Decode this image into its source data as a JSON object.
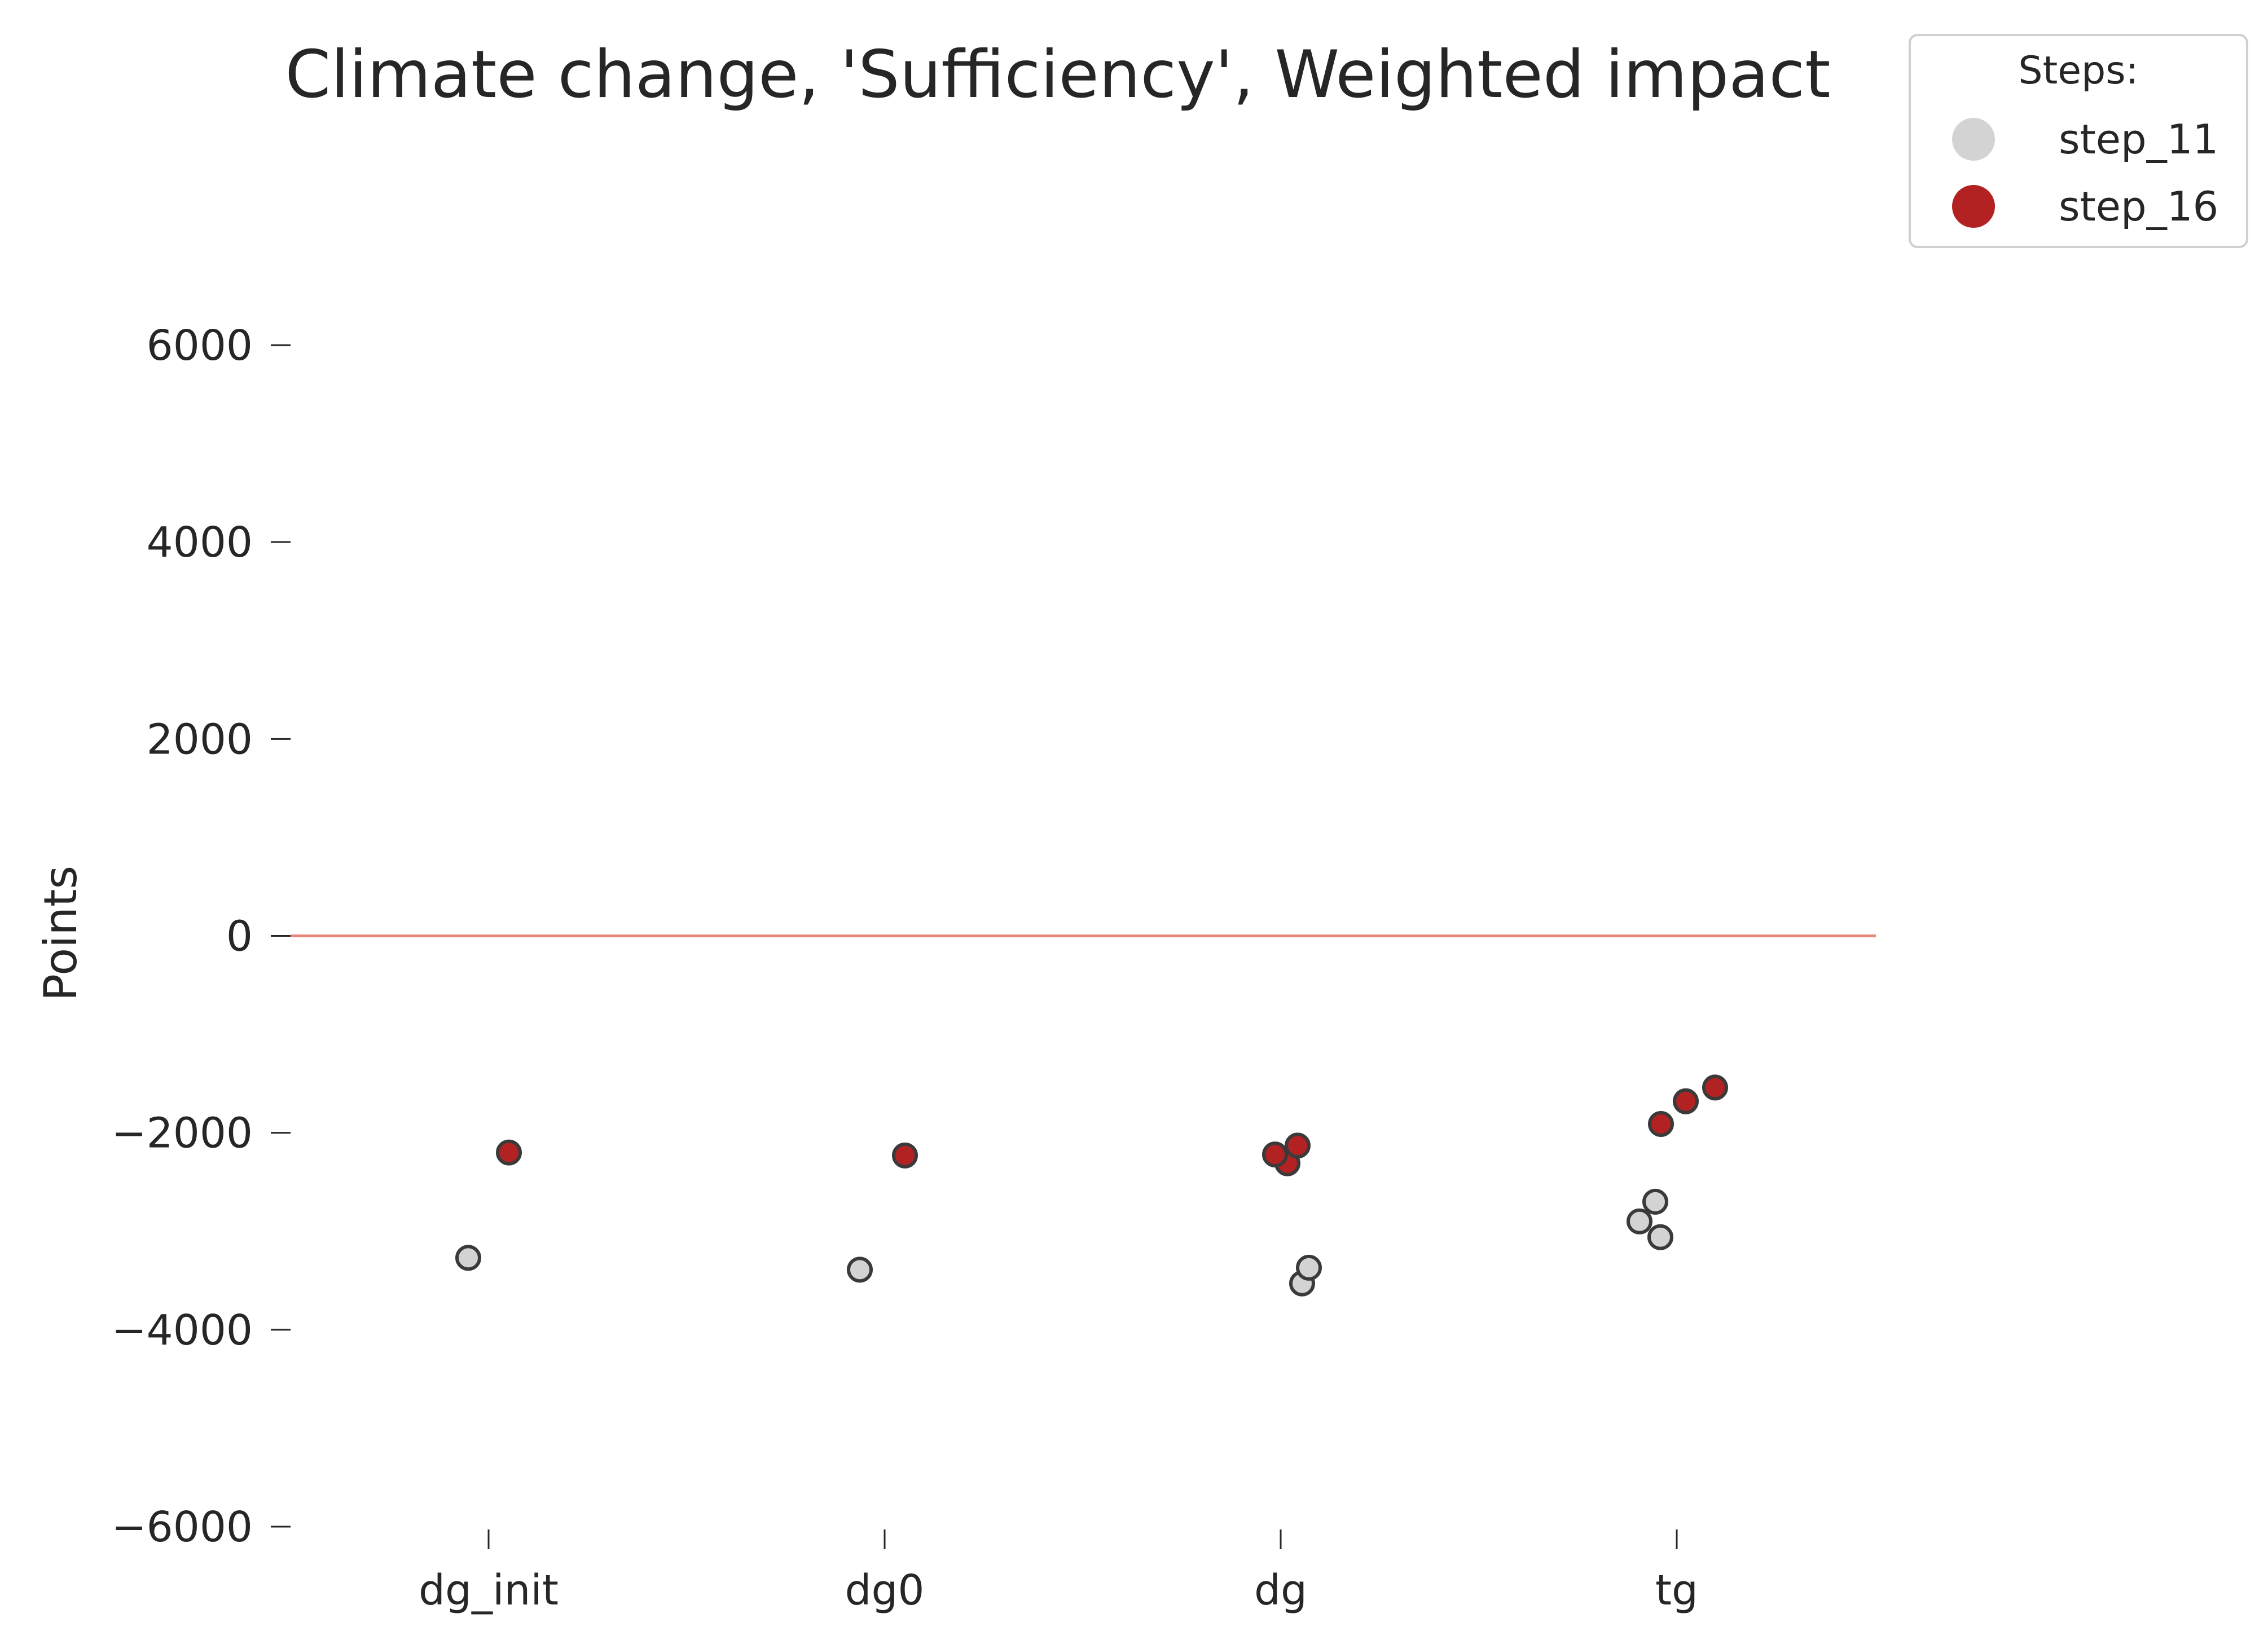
{
  "chart_data": {
    "type": "scatter",
    "title": "Climate change, 'Sufficiency', Weighted impact",
    "xlabel": "",
    "ylabel": "Points",
    "categories": [
      "dg_init",
      "dg0",
      "dg",
      "tg"
    ],
    "ylim": [
      -6000,
      6000
    ],
    "yticks": [
      -6000,
      -4000,
      -2000,
      0,
      2000,
      4000,
      6000
    ],
    "ytick_labels": [
      "−6000",
      "−4000",
      "−2000",
      "0",
      "2000",
      "4000",
      "6000"
    ],
    "reference_line": {
      "y": 0,
      "color": "#e8867d"
    },
    "grid": false,
    "legend": {
      "title": "Steps:",
      "position": "top-right"
    },
    "series": [
      {
        "name": "step_11",
        "color": "#d3d3d3",
        "points": [
          {
            "x": "dg_init",
            "y": -3270
          },
          {
            "x": "dg0",
            "y": -3390
          },
          {
            "x": "dg",
            "y": -3530
          },
          {
            "x": "dg",
            "y": -3370
          },
          {
            "x": "tg",
            "y": -2700
          },
          {
            "x": "tg",
            "y": -2900
          },
          {
            "x": "tg",
            "y": -3060
          }
        ]
      },
      {
        "name": "step_16",
        "color": "#b22222",
        "points": [
          {
            "x": "dg_init",
            "y": -2200
          },
          {
            "x": "dg0",
            "y": -2230
          },
          {
            "x": "dg",
            "y": -2310
          },
          {
            "x": "dg",
            "y": -2220
          },
          {
            "x": "dg",
            "y": -2130
          },
          {
            "x": "tg",
            "y": -1910
          },
          {
            "x": "tg",
            "y": -1680
          },
          {
            "x": "tg",
            "y": -1540
          }
        ]
      }
    ]
  }
}
